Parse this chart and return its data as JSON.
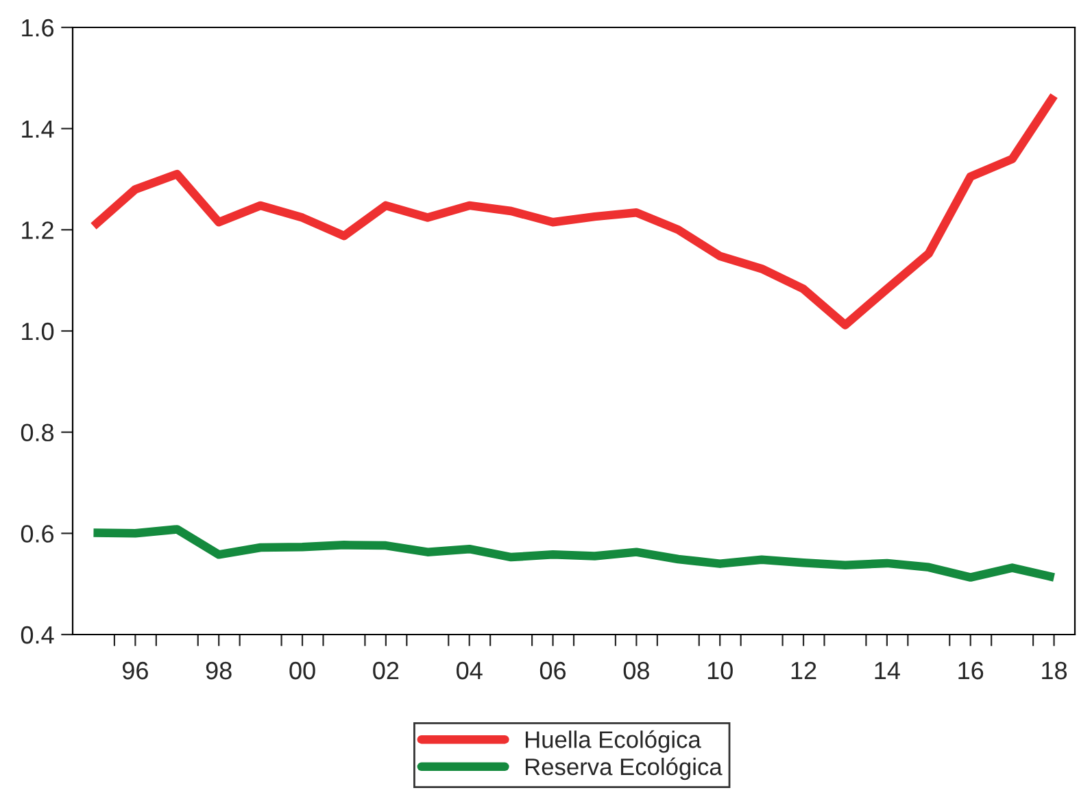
{
  "chart_data": {
    "type": "line",
    "x": [
      1995,
      1996,
      1997,
      1998,
      1999,
      2000,
      2001,
      2002,
      2003,
      2004,
      2005,
      2006,
      2007,
      2008,
      2009,
      2010,
      2011,
      2012,
      2013,
      2014,
      2015,
      2016,
      2017,
      2018
    ],
    "series": [
      {
        "name": "Huella Ecológica",
        "color": "#ee3030",
        "values": [
          1.207,
          1.28,
          1.31,
          1.215,
          1.248,
          1.224,
          1.188,
          1.248,
          1.224,
          1.248,
          1.237,
          1.215,
          1.226,
          1.234,
          1.2,
          1.148,
          1.123,
          1.083,
          1.012,
          1.083,
          1.153,
          1.305,
          1.34,
          1.465
        ]
      },
      {
        "name": "Reserva Ecológica",
        "color": "#148a3e",
        "values": [
          0.601,
          0.6,
          0.608,
          0.558,
          0.572,
          0.573,
          0.577,
          0.576,
          0.563,
          0.569,
          0.553,
          0.558,
          0.555,
          0.563,
          0.549,
          0.54,
          0.548,
          0.542,
          0.537,
          0.541,
          0.533,
          0.513,
          0.532,
          0.513
        ]
      }
    ],
    "xlim": [
      1994.5,
      2018.5
    ],
    "xticks": [
      {
        "value": 1995.5,
        "label": null
      },
      {
        "value": 1996,
        "label": "96"
      },
      {
        "value": 1996.5,
        "label": null
      },
      {
        "value": 1997.5,
        "label": null
      },
      {
        "value": 1998,
        "label": "98"
      },
      {
        "value": 1998.5,
        "label": null
      },
      {
        "value": 1999.5,
        "label": null
      },
      {
        "value": 2000,
        "label": "00"
      },
      {
        "value": 2000.5,
        "label": null
      },
      {
        "value": 2001.5,
        "label": null
      },
      {
        "value": 2002,
        "label": "02"
      },
      {
        "value": 2002.5,
        "label": null
      },
      {
        "value": 2003.5,
        "label": null
      },
      {
        "value": 2004,
        "label": "04"
      },
      {
        "value": 2004.5,
        "label": null
      },
      {
        "value": 2005.5,
        "label": null
      },
      {
        "value": 2006,
        "label": "06"
      },
      {
        "value": 2006.5,
        "label": null
      },
      {
        "value": 2007.5,
        "label": null
      },
      {
        "value": 2008,
        "label": "08"
      },
      {
        "value": 2008.5,
        "label": null
      },
      {
        "value": 2009.5,
        "label": null
      },
      {
        "value": 2010,
        "label": "10"
      },
      {
        "value": 2010.5,
        "label": null
      },
      {
        "value": 2011.5,
        "label": null
      },
      {
        "value": 2012,
        "label": "12"
      },
      {
        "value": 2012.5,
        "label": null
      },
      {
        "value": 2013.5,
        "label": null
      },
      {
        "value": 2014,
        "label": "14"
      },
      {
        "value": 2014.5,
        "label": null
      },
      {
        "value": 2015.5,
        "label": null
      },
      {
        "value": 2016,
        "label": "16"
      },
      {
        "value": 2016.5,
        "label": null
      },
      {
        "value": 2017.5,
        "label": null
      },
      {
        "value": 2018,
        "label": "18"
      }
    ],
    "ylim": [
      0.4,
      1.6
    ],
    "yticks": [
      {
        "value": 0.4,
        "label": "0.4"
      },
      {
        "value": 0.6,
        "label": "0.6"
      },
      {
        "value": 0.8,
        "label": "0.8"
      },
      {
        "value": 1.0,
        "label": "1.0"
      },
      {
        "value": 1.2,
        "label": "1.2"
      },
      {
        "value": 1.4,
        "label": "1.4"
      },
      {
        "value": 1.6,
        "label": "1.6"
      }
    ],
    "grid": false,
    "legend": "bottom",
    "line_style": "solid",
    "marker": "none"
  }
}
